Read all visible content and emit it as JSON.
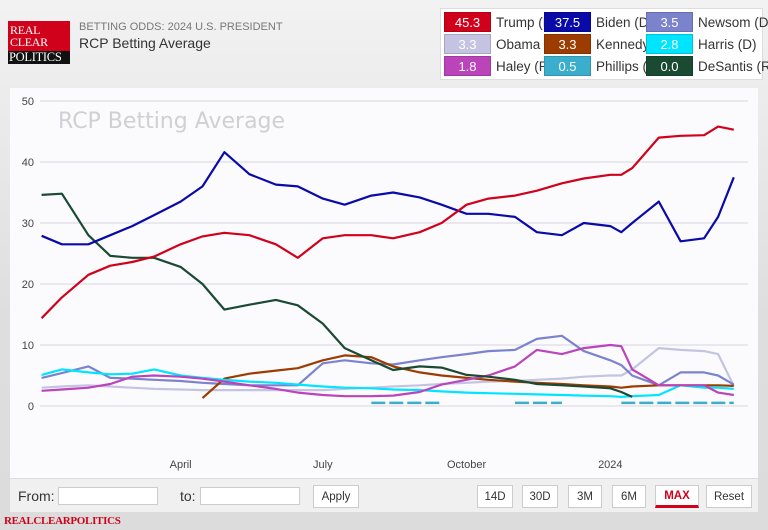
{
  "header": {
    "subtitle": "BETTING ODDS: 2024 U.S. PRESIDENT",
    "title": "RCP Betting Average",
    "logo_text": [
      "REAL",
      "CLEAR",
      "POLITICS"
    ]
  },
  "legend": [
    {
      "value": "45.3",
      "name": "Trump (R)",
      "color": "#d0021b"
    },
    {
      "value": "37.5",
      "name": "Biden (D)",
      "color": "#0a0aa8"
    },
    {
      "value": "3.5",
      "name": "Newsom (D)",
      "color": "#7b83cc"
    },
    {
      "value": "3.3",
      "name": "Obama (D)",
      "color": "#c4c4e2"
    },
    {
      "value": "3.3",
      "name": "Kennedy (I)",
      "color": "#9c3c00"
    },
    {
      "value": "2.8",
      "name": "Harris (D)",
      "color": "#00e5ff"
    },
    {
      "value": "1.8",
      "name": "Haley (R)",
      "color": "#bb44bb"
    },
    {
      "value": "0.5",
      "name": "Phillips (D)",
      "color": "#3aaecc"
    },
    {
      "value": "0.0",
      "name": "DeSantis (R)",
      "color": "#1b4a33"
    }
  ],
  "chart_data": {
    "type": "line",
    "title": "RCP Betting Average",
    "ylim": [
      0,
      50
    ],
    "yticks": [
      0,
      10,
      20,
      30,
      40,
      50
    ],
    "xlim": [
      "2023-01-01",
      "2024-03-24"
    ],
    "xticks": [
      {
        "date": "2023-04-01",
        "label": "April"
      },
      {
        "date": "2023-07-01",
        "label": "July"
      },
      {
        "date": "2023-10-01",
        "label": "October"
      },
      {
        "date": "2024-01-01",
        "label": "2024"
      }
    ],
    "grid": true,
    "x": [
      "2023-01-02",
      "2023-01-15",
      "2023-02-01",
      "2023-02-15",
      "2023-03-01",
      "2023-03-15",
      "2023-04-01",
      "2023-04-15",
      "2023-04-29",
      "2023-05-15",
      "2023-06-01",
      "2023-06-15",
      "2023-07-01",
      "2023-07-15",
      "2023-08-01",
      "2023-08-15",
      "2023-09-01",
      "2023-09-15",
      "2023-10-01",
      "2023-10-15",
      "2023-11-01",
      "2023-11-15",
      "2023-12-01",
      "2023-12-15",
      "2024-01-01",
      "2024-01-08",
      "2024-01-15",
      "2024-02-01",
      "2024-02-15",
      "2024-03-01",
      "2024-03-10",
      "2024-03-20"
    ],
    "series": [
      {
        "name": "Obama (D)",
        "color": "#c4c4e2",
        "values": [
          3,
          3.2,
          3.4,
          3.2,
          3,
          2.8,
          2.7,
          2.6,
          2.6,
          2.6,
          2.6,
          2.6,
          2.6,
          2.8,
          3,
          3.2,
          3.4,
          3.6,
          3.8,
          4,
          4.1,
          4.3,
          4.5,
          4.8,
          5,
          5,
          6,
          9.5,
          9.2,
          9,
          8.5,
          3.3
        ]
      },
      {
        "name": "Newsom (D)",
        "color": "#7b83cc",
        "values": [
          4.6,
          5.4,
          6.5,
          4.6,
          4.5,
          4.3,
          4.1,
          3.8,
          3.6,
          3.4,
          3.4,
          3.4,
          7,
          7.5,
          7,
          6.8,
          7.5,
          8,
          8.5,
          9,
          9.2,
          11,
          11.5,
          9,
          7.5,
          6.7,
          5,
          3.4,
          5.5,
          5.5,
          5,
          3.5
        ]
      },
      {
        "name": "Kennedy (I)",
        "color": "#9c3c00",
        "values": [
          null,
          null,
          null,
          null,
          null,
          null,
          null,
          1.3,
          4.5,
          5.3,
          5.8,
          6.2,
          7.5,
          8.3,
          8,
          6.5,
          5.5,
          5,
          4.6,
          4.3,
          4,
          3.8,
          3.6,
          3.4,
          3.2,
          3,
          3.2,
          3.4,
          3.4,
          3.4,
          3.4,
          3.3
        ]
      },
      {
        "name": "Harris (D)",
        "color": "#00e5ff",
        "values": [
          5.1,
          6,
          5.5,
          5.2,
          5.3,
          6,
          5,
          4.6,
          4.3,
          4,
          3.8,
          3.5,
          3.2,
          3,
          2.9,
          2.7,
          2.6,
          2.4,
          2.2,
          2.1,
          2,
          1.9,
          1.8,
          1.7,
          1.6,
          1.5,
          1.6,
          1.8,
          3.4,
          3,
          3,
          2.8
        ]
      },
      {
        "name": "Haley (R)",
        "color": "#bb44bb",
        "values": [
          2.5,
          2.7,
          3,
          3.6,
          4.8,
          5,
          4.8,
          4.5,
          4,
          3.4,
          2.8,
          2.2,
          1.8,
          1.6,
          1.6,
          1.7,
          2.3,
          3.5,
          4.3,
          5,
          6.5,
          9.2,
          8.5,
          9.5,
          10,
          9.8,
          6,
          3.4,
          3.4,
          3.4,
          2.2,
          1.8
        ]
      },
      {
        "name": "Phillips (D)",
        "color": "#3aaecc",
        "values": [
          null,
          null,
          null,
          null,
          null,
          null,
          null,
          null,
          null,
          null,
          null,
          null,
          null,
          null,
          0.5,
          0.5,
          0.5,
          0.5,
          null,
          null,
          0.5,
          0.5,
          0.5,
          null,
          null,
          0.5,
          0.5,
          0.5,
          0.5,
          0.5,
          0.5,
          0.5
        ]
      },
      {
        "name": "DeSantis (R)",
        "color": "#1b4a33",
        "values": [
          34.6,
          34.8,
          28,
          24.6,
          24.3,
          24.3,
          22.8,
          20,
          15.8,
          16.6,
          17.4,
          16.5,
          13.5,
          9.5,
          7.5,
          5.9,
          6.5,
          6.3,
          5.1,
          4.8,
          4.3,
          3.6,
          3.4,
          3.2,
          2.9,
          2.3,
          1.5,
          null,
          null,
          null,
          null,
          null
        ]
      },
      {
        "name": "Biden (D)",
        "color": "#0a0aa8",
        "values": [
          27.9,
          26.5,
          26.5,
          28,
          29.5,
          31.3,
          33.5,
          36,
          41.6,
          38,
          36.3,
          36,
          34,
          33,
          34.5,
          35,
          34.2,
          33,
          31.5,
          31.5,
          31,
          28.5,
          28,
          30,
          29.5,
          28.5,
          30,
          33.5,
          27,
          27.5,
          31,
          37.5
        ]
      },
      {
        "name": "Trump (R)",
        "color": "#d0021b",
        "values": [
          14.4,
          17.8,
          21.5,
          23,
          23.6,
          24.5,
          26.5,
          27.8,
          28.4,
          28,
          26.5,
          24.3,
          27.5,
          28,
          28,
          27.5,
          28.5,
          30,
          33,
          34,
          34.5,
          35.3,
          36.5,
          37.3,
          37.9,
          37.9,
          39,
          44,
          44.3,
          44.4,
          45.8,
          45.3
        ]
      }
    ]
  },
  "controls": {
    "from_label": "From:",
    "to_label": "to:",
    "from_value": "",
    "to_value": "",
    "apply": "Apply",
    "ranges": [
      "14D",
      "30D",
      "3M",
      "6M",
      "MAX",
      "Reset"
    ],
    "active_range": "MAX"
  },
  "footer": {
    "brand": "REALCLEARPOLITICS"
  }
}
